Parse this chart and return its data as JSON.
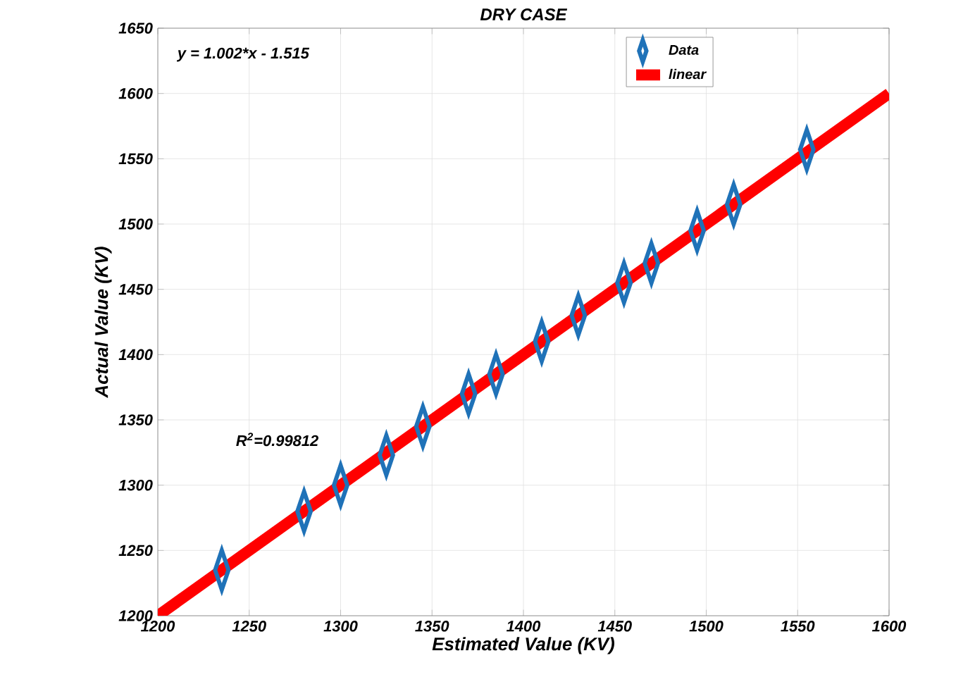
{
  "chart_data": {
    "type": "scatter",
    "title": "DRY CASE",
    "xlabel": "Estimated Value (KV)",
    "ylabel": "Actual Value (KV)",
    "annotations": [
      "y = 1.002*x - 1.515",
      "R$^{2}$=0.99812"
    ],
    "series": [
      {
        "name": "Data",
        "marker": "diamond",
        "color": "#1f72b8",
        "x": [
          1235,
          1280,
          1300,
          1325,
          1345,
          1370,
          1385,
          1410,
          1430,
          1455,
          1470,
          1495,
          1515,
          1555
        ],
        "values": [
          1235,
          1280,
          1300,
          1323,
          1345,
          1370,
          1385,
          1410,
          1430,
          1455,
          1470,
          1495,
          1515,
          1557
        ]
      },
      {
        "name": "linear",
        "type": "line",
        "color": "#ff0000",
        "x": [
          1200,
          1600
        ],
        "values": [
          1200,
          1600
        ]
      }
    ],
    "xlim": [
      1200,
      1600
    ],
    "ylim": [
      1200,
      1650
    ],
    "xticks": [
      1200,
      1250,
      1300,
      1350,
      1400,
      1450,
      1500,
      1550,
      1600
    ],
    "yticks": [
      1200,
      1250,
      1300,
      1350,
      1400,
      1450,
      1500,
      1550,
      1600,
      1650
    ],
    "grid": true,
    "legend": "top right"
  }
}
